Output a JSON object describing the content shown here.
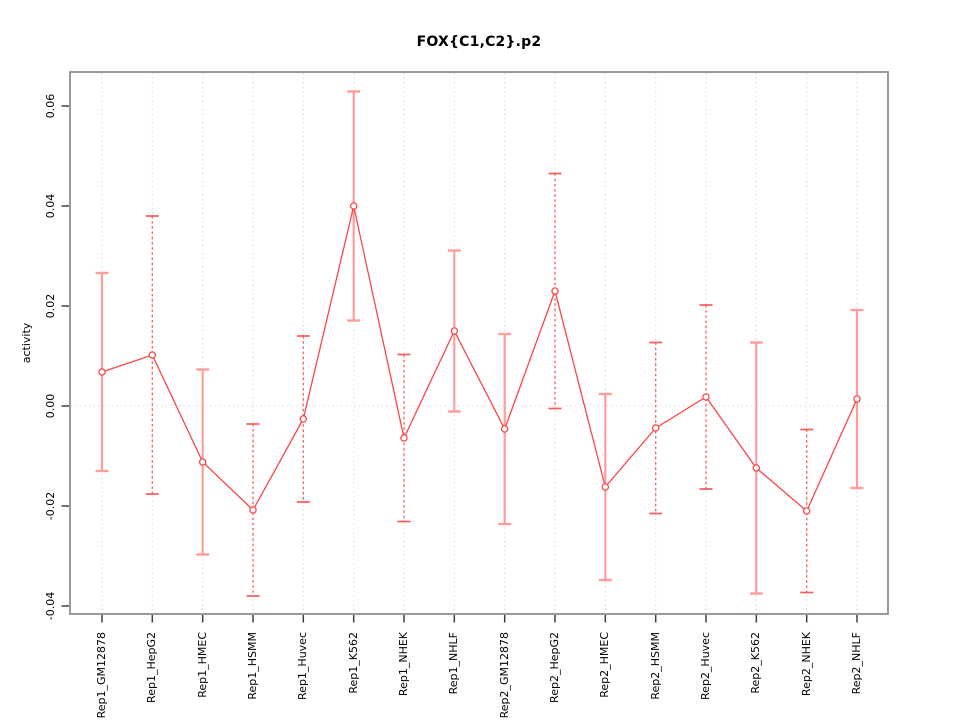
{
  "chart_data": {
    "type": "line",
    "title": "FOX{C1,C2}.p2",
    "ylabel": "activity",
    "xlabel": "",
    "ylim": [
      -0.0416,
      0.0668
    ],
    "legend": "none",
    "grid": {
      "vertical_dotted_at_each_category": true,
      "horizontal_dotted_at_zero": true
    },
    "yticks": {
      "values": [
        0.06,
        0.04,
        0.02,
        0,
        -0.02,
        -0.04
      ],
      "labels": [
        "0.06",
        "0.04",
        "0.02",
        "0.00",
        "-0.02",
        "-0.04"
      ]
    },
    "categories": [
      "Rep1_GM12878",
      "Rep1_HepG2",
      "Rep1_HMEC",
      "Rep1_HSMM",
      "Rep1_Huvec",
      "Rep1_K562",
      "Rep1_NHEK",
      "Rep1_NHLF",
      "Rep2_GM12878",
      "Rep2_HepG2",
      "Rep2_HMEC",
      "Rep2_HSMM",
      "Rep2_Huvec",
      "Rep2_K562",
      "Rep2_NHEK",
      "Rep2_NHLF"
    ],
    "series": [
      {
        "name": "activity",
        "marker": "open-circle",
        "values": [
          0.0068,
          0.0102,
          -0.0112,
          -0.0208,
          -0.0026,
          0.04,
          -0.0064,
          0.015,
          -0.0046,
          0.023,
          -0.0162,
          -0.0044,
          0.0018,
          -0.0124,
          -0.021,
          0.0014
        ],
        "error_upper": [
          0.0266,
          0.038,
          0.0073,
          -0.0036,
          0.014,
          0.0629,
          0.0103,
          0.0311,
          0.0144,
          0.0465,
          0.0024,
          0.0127,
          0.0202,
          0.0127,
          -0.0047,
          0.0192
        ],
        "error_lower": [
          -0.013,
          -0.0176,
          -0.0297,
          -0.038,
          -0.0192,
          0.0171,
          -0.0231,
          -0.0011,
          -0.0236,
          -0.0005,
          -0.0348,
          -0.0215,
          -0.0166,
          -0.0375,
          -0.0373,
          -0.0164
        ],
        "error_bar_styles": [
          "solid",
          "dashed",
          "solid",
          "dashed",
          "dashed",
          "solid",
          "dashed",
          "solid",
          "solid",
          "dashed",
          "solid",
          "dashed",
          "dashed",
          "solid",
          "dashed",
          "solid"
        ]
      }
    ],
    "colors": {
      "series": "#fb4646",
      "errorbar_solid": "#ff9d9d",
      "errorbar_dashed": "#fb5a5a",
      "grid": "#dcdcdc",
      "frame": "#8f8f8f",
      "tick": "#404040",
      "text": "#000000"
    }
  }
}
